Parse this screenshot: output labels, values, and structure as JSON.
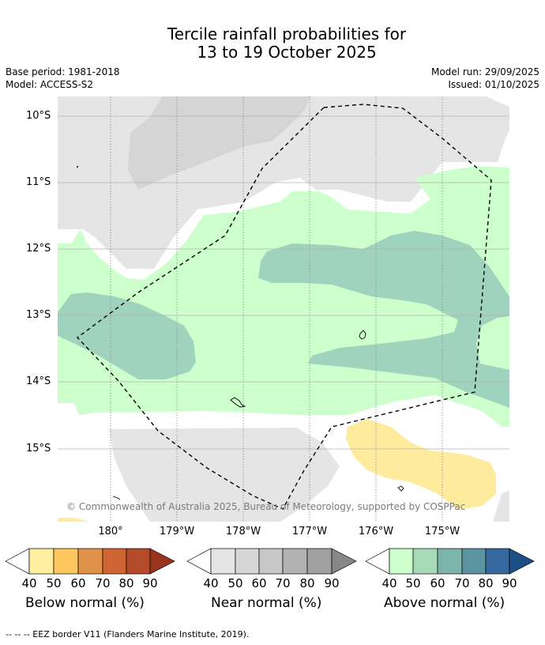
{
  "header": {
    "title_line1": "Tercile rainfall probabilities for",
    "title_line2": "13 to 19 October 2025",
    "base_period": "Base period: 1981-2018",
    "model": "Model: ACCESS-S2",
    "model_run": "Model run: 29/09/2025",
    "issued": "Issued: 01/10/2025"
  },
  "map": {
    "lat_labels": [
      "10°S",
      "11°S",
      "12°S",
      "13°S",
      "14°S",
      "15°S"
    ],
    "lon_labels": [
      "180°",
      "179°W",
      "178°W",
      "177°W",
      "176°W",
      "175°W"
    ],
    "copyright": "© Commonwealth of Australia 2025, Bureau of Meteorology, supported by COSPPac",
    "colors": {
      "near_normal_40": "#e5e5e5",
      "near_normal_50": "#d5d5d5",
      "above_normal_40": "#ccffcc",
      "above_normal_50": "#a0d3bd",
      "below_normal_40": "#ffeb9e"
    }
  },
  "legends": [
    {
      "label": "Below normal (%)",
      "ticks": [
        "40",
        "50",
        "60",
        "70",
        "80",
        "90"
      ],
      "colors": [
        "#ffeda0",
        "#fdc760",
        "#e0924a",
        "#cf6532",
        "#b34a2a",
        "#99341d"
      ]
    },
    {
      "label": "Near normal (%)",
      "ticks": [
        "40",
        "50",
        "60",
        "70",
        "80",
        "90"
      ],
      "colors": [
        "#e5e5e5",
        "#d6d6d6",
        "#c7c7c7",
        "#b3b3b3",
        "#a1a1a1",
        "#878787"
      ]
    },
    {
      "label": "Above normal (%)",
      "ticks": [
        "40",
        "50",
        "60",
        "70",
        "80",
        "90"
      ],
      "colors": [
        "#ccffcc",
        "#a8dab8",
        "#7cb4ac",
        "#5a94a0",
        "#35689c",
        "#1e4e86"
      ]
    }
  ],
  "footnote": "--  --  -- EEZ border V11 (Flanders Marine Institute, 2019)."
}
